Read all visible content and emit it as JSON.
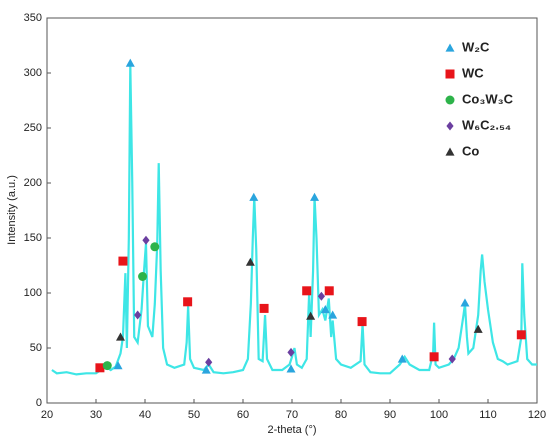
{
  "chart_data": {
    "type": "line",
    "xlabel": "2-theta (°)",
    "ylabel": "Intensity (a.u.)",
    "xlim": [
      20,
      120
    ],
    "xticks": [
      20,
      30,
      40,
      50,
      60,
      70,
      80,
      90,
      100,
      110,
      120
    ],
    "ylim": [
      0,
      350
    ],
    "yticks": [
      0,
      50,
      100,
      150,
      200,
      250,
      300,
      350
    ],
    "legend": "upper right",
    "series": [
      {
        "color": "#3ee6e6",
        "x": [
          21,
          22,
          24,
          26,
          28,
          30,
          31,
          32,
          33,
          34,
          35,
          35.5,
          36,
          36.3,
          36.7,
          37,
          37.4,
          37.8,
          38.5,
          39.3,
          39.8,
          40.2,
          40.6,
          41.5,
          42,
          42.5,
          42.8,
          43.2,
          43.7,
          44.5,
          46,
          48,
          48.5,
          48.8,
          49.2,
          50,
          52,
          53,
          54,
          56,
          58,
          60,
          61,
          61.6,
          62,
          62.3,
          62.7,
          63.2,
          64,
          64.5,
          64.9,
          66,
          68,
          69.5,
          70,
          70.5,
          71,
          72,
          73,
          73.5,
          73.8,
          74.3,
          74.6,
          75,
          75.5,
          76.2,
          76.8,
          77.5,
          78,
          78.3,
          79,
          80,
          82,
          84,
          84.4,
          84.8,
          86,
          88,
          90,
          92,
          93,
          94,
          96,
          98,
          98.8,
          99,
          99.3,
          100,
          102,
          103,
          104,
          105,
          105.3,
          105.7,
          106,
          107,
          108,
          108.5,
          108.8,
          109.3,
          110,
          111,
          112,
          113,
          114,
          116,
          116.8,
          117,
          117.4,
          118,
          119,
          120
        ],
        "values": [
          30,
          27,
          28,
          26,
          27,
          27,
          30,
          33,
          30,
          33,
          45,
          60,
          118,
          50,
          150,
          308,
          200,
          60,
          55,
          85,
          120,
          145,
          70,
          60,
          90,
          145,
          218,
          120,
          50,
          35,
          32,
          35,
          55,
          88,
          40,
          32,
          30,
          35,
          28,
          27,
          28,
          30,
          40,
          90,
          150,
          187,
          140,
          40,
          38,
          80,
          40,
          30,
          30,
          35,
          42,
          50,
          35,
          32,
          40,
          100,
          60,
          120,
          187,
          150,
          80,
          85,
          75,
          95,
          60,
          75,
          40,
          35,
          32,
          38,
          72,
          35,
          28,
          27,
          27,
          35,
          42,
          35,
          30,
          30,
          45,
          73,
          35,
          32,
          35,
          40,
          50,
          80,
          90,
          60,
          45,
          50,
          80,
          120,
          135,
          110,
          85,
          55,
          40,
          38,
          35,
          38,
          60,
          127,
          80,
          40,
          35,
          35
        ]
      }
    ],
    "markers": [
      {
        "name": "W₂C",
        "color": "#2aa5de",
        "marker": "triangle",
        "x": [
          34.5,
          37,
          52.5,
          62.2,
          69.8,
          74.6,
          76.8,
          78.3,
          92.5,
          105.3
        ],
        "values": [
          34,
          309,
          30,
          187,
          31,
          187,
          85,
          80,
          40,
          91
        ]
      },
      {
        "name": "WC",
        "color": "#e8141a",
        "marker": "square",
        "x": [
          30.8,
          35.5,
          48.7,
          64.3,
          73,
          77.6,
          84.3,
          99,
          116.8
        ],
        "values": [
          32,
          129,
          92,
          86,
          102,
          102,
          74,
          42,
          62
        ]
      },
      {
        "name": "Co₃W₃C",
        "color": "#2db34a",
        "marker": "circle",
        "x": [
          32.3,
          39.5,
          42
        ],
        "values": [
          34,
          115,
          142
        ]
      },
      {
        "name": "W₆C₂.₅₄",
        "color": "#6b3fa0",
        "marker": "diamond",
        "x": [
          38.5,
          40.2,
          53,
          69.8,
          76,
          102.7
        ],
        "values": [
          80,
          148,
          37,
          46,
          97,
          40
        ]
      },
      {
        "name": "Co",
        "color": "#333333",
        "marker": "triangle",
        "x": [
          35,
          61.5,
          73.8,
          108
        ],
        "values": [
          60,
          128,
          79,
          67
        ]
      }
    ]
  }
}
